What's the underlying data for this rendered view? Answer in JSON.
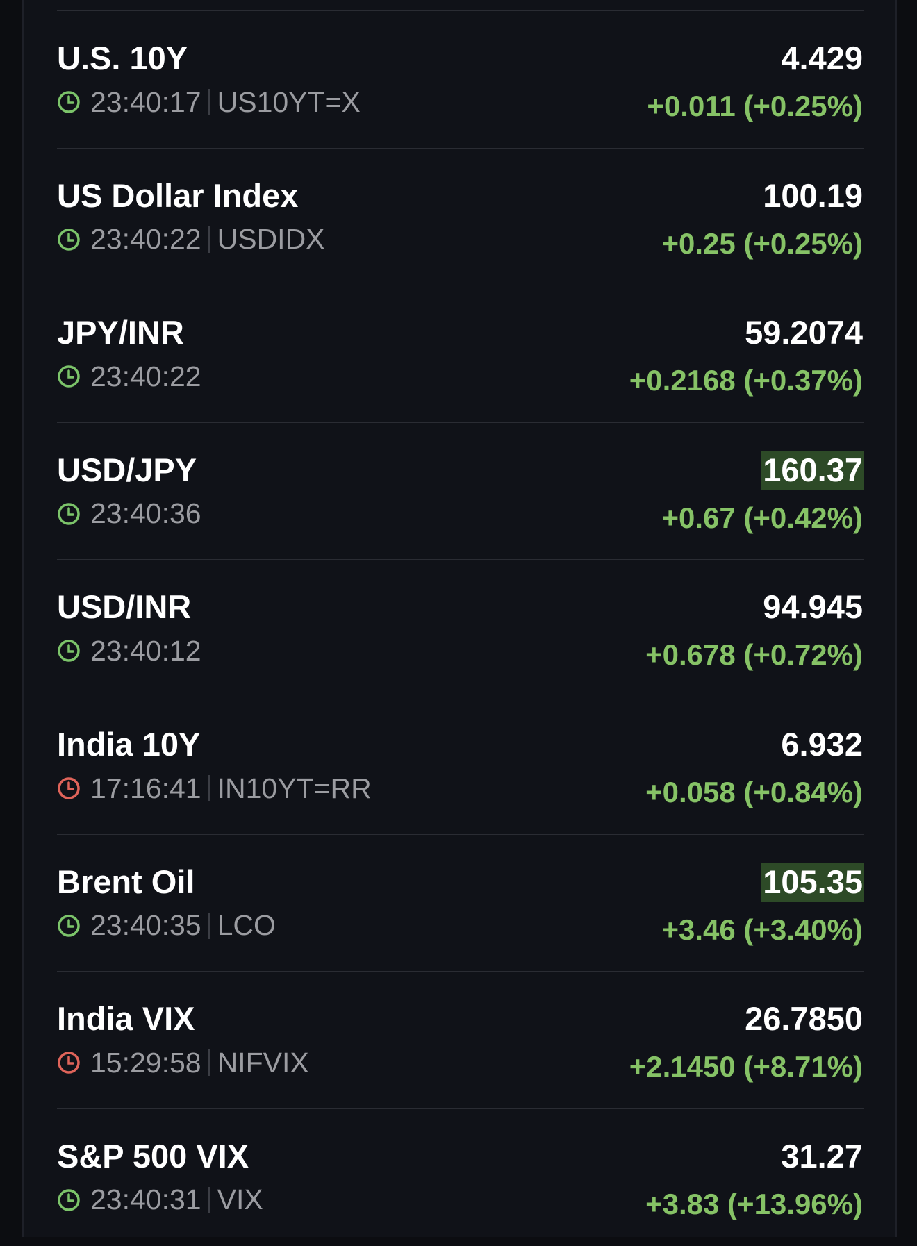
{
  "rows": [
    {
      "name": "U.S. 10Y",
      "time": "23:40:17",
      "symbol": "US10YT=X",
      "clock_color": "#7cc46a",
      "price": "4.429",
      "highlighted": false,
      "change": "+0.011 (+0.25%)"
    },
    {
      "name": "US Dollar Index",
      "time": "23:40:22",
      "symbol": "USDIDX",
      "clock_color": "#7cc46a",
      "price": "100.19",
      "highlighted": false,
      "change": "+0.25 (+0.25%)"
    },
    {
      "name": "JPY/INR",
      "time": "23:40:22",
      "clock_color": "#7cc46a",
      "price": "59.2074",
      "highlighted": false,
      "change": "+0.2168 (+0.37%)"
    },
    {
      "name": "USD/JPY",
      "time": "23:40:36",
      "clock_color": "#7cc46a",
      "price": "160.37",
      "highlighted": true,
      "change": "+0.67 (+0.42%)"
    },
    {
      "name": "USD/INR",
      "time": "23:40:12",
      "clock_color": "#7cc46a",
      "price": "94.945",
      "highlighted": false,
      "change": "+0.678 (+0.72%)"
    },
    {
      "name": "India 10Y",
      "time": "17:16:41",
      "symbol": "IN10YT=RR",
      "clock_color": "#e0645a",
      "price": "6.932",
      "highlighted": false,
      "change": "+0.058 (+0.84%)"
    },
    {
      "name": "Brent Oil",
      "time": "23:40:35",
      "symbol": "LCO",
      "clock_color": "#7cc46a",
      "price": "105.35",
      "highlighted": true,
      "change": "+3.46 (+3.40%)"
    },
    {
      "name": "India VIX",
      "time": "15:29:58",
      "symbol": "NIFVIX",
      "clock_color": "#e0645a",
      "price": "26.7850",
      "highlighted": false,
      "change": "+2.1450 (+8.71%)"
    },
    {
      "name": "S&P 500 VIX",
      "time": "23:40:31",
      "symbol": "VIX",
      "clock_color": "#7cc46a",
      "price": "31.27",
      "highlighted": false,
      "change": "+3.83 (+13.96%)"
    }
  ]
}
